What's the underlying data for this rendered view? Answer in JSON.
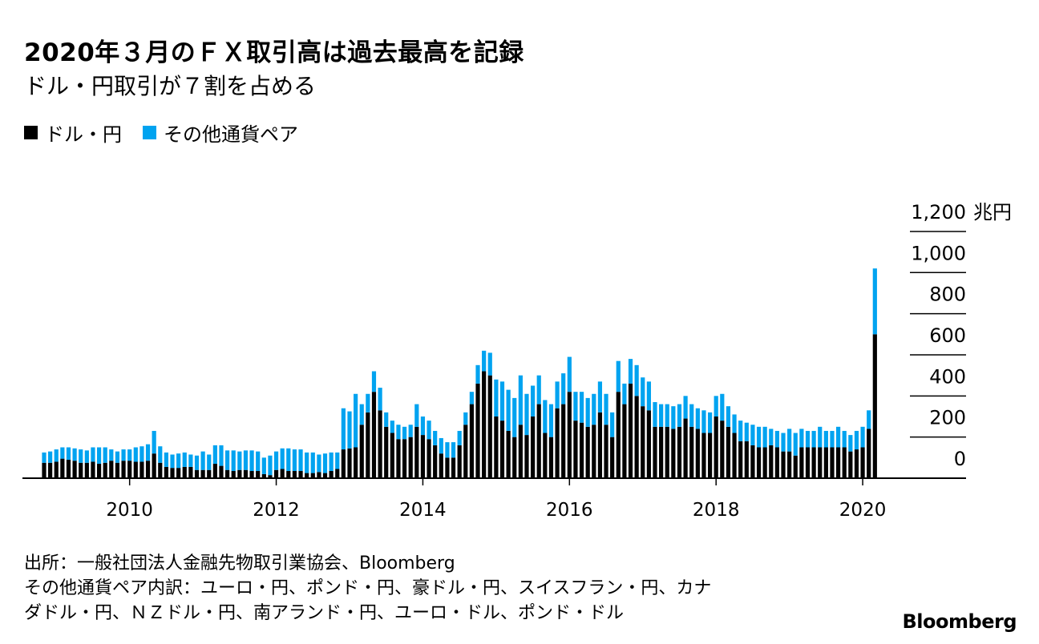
{
  "title": "2020年３月のＦＸ取引高は過去最高を記録",
  "subtitle": "ドル・円取引が７割を占める",
  "legend": [
    {
      "label": "ドル・円",
      "color": "#000000"
    },
    {
      "label": "その他通貨ペア",
      "color": "#00a3f0"
    }
  ],
  "source_lines": [
    "出所：一般社団法人金融先物取引業協会、Bloomberg",
    "その他通貨ペア内訳：ユーロ・円、ポンド・円、豪ドル・円、スイスフラン・円、カナ",
    "ダドル・円、ＮＺドル・円、南アランド・円、ユーロ・ドル、ポンド・ドル"
  ],
  "logo_text": "Bloomberg",
  "chart_data": {
    "type": "bar",
    "stacked": true,
    "unit": "兆円",
    "ylim": [
      0,
      1200
    ],
    "y_ticks": [
      0,
      200,
      400,
      600,
      800,
      1000,
      1200
    ],
    "y_tick_labels": [
      "0",
      "200",
      "400",
      "600",
      "800",
      "1,000",
      "1,200"
    ],
    "y_unit_label": "兆円",
    "x_tick_labels": [
      "2010",
      "2012",
      "2014",
      "2016",
      "2018",
      "2020"
    ],
    "x_tick_values": [
      2010,
      2012,
      2014,
      2016,
      2018,
      2020
    ],
    "x_start": "2008-11",
    "x_end": "2020-03",
    "categories": [
      "2008-11",
      "2008-12",
      "2009-01",
      "2009-02",
      "2009-03",
      "2009-04",
      "2009-05",
      "2009-06",
      "2009-07",
      "2009-08",
      "2009-09",
      "2009-10",
      "2009-11",
      "2009-12",
      "2010-01",
      "2010-02",
      "2010-03",
      "2010-04",
      "2010-05",
      "2010-06",
      "2010-07",
      "2010-08",
      "2010-09",
      "2010-10",
      "2010-11",
      "2010-12",
      "2011-01",
      "2011-02",
      "2011-03",
      "2011-04",
      "2011-05",
      "2011-06",
      "2011-07",
      "2011-08",
      "2011-09",
      "2011-10",
      "2011-11",
      "2011-12",
      "2012-01",
      "2012-02",
      "2012-03",
      "2012-04",
      "2012-05",
      "2012-06",
      "2012-07",
      "2012-08",
      "2012-09",
      "2012-10",
      "2012-11",
      "2012-12",
      "2013-01",
      "2013-02",
      "2013-03",
      "2013-04",
      "2013-05",
      "2013-06",
      "2013-07",
      "2013-08",
      "2013-09",
      "2013-10",
      "2013-11",
      "2013-12",
      "2014-01",
      "2014-02",
      "2014-03",
      "2014-04",
      "2014-05",
      "2014-06",
      "2014-07",
      "2014-08",
      "2014-09",
      "2014-10",
      "2014-11",
      "2014-12",
      "2015-01",
      "2015-02",
      "2015-03",
      "2015-04",
      "2015-05",
      "2015-06",
      "2015-07",
      "2015-08",
      "2015-09",
      "2015-10",
      "2015-11",
      "2015-12",
      "2016-01",
      "2016-02",
      "2016-03",
      "2016-04",
      "2016-05",
      "2016-06",
      "2016-07",
      "2016-08",
      "2016-09",
      "2016-10",
      "2016-11",
      "2016-12",
      "2017-01",
      "2017-02",
      "2017-03",
      "2017-04",
      "2017-05",
      "2017-06",
      "2017-07",
      "2017-08",
      "2017-09",
      "2017-10",
      "2017-11",
      "2017-12",
      "2018-01",
      "2018-02",
      "2018-03",
      "2018-04",
      "2018-05",
      "2018-06",
      "2018-07",
      "2018-08",
      "2018-09",
      "2018-10",
      "2018-11",
      "2018-12",
      "2019-01",
      "2019-02",
      "2019-03",
      "2019-04",
      "2019-05",
      "2019-06",
      "2019-07",
      "2019-08",
      "2019-09",
      "2019-10",
      "2019-11",
      "2019-12",
      "2020-01",
      "2020-02",
      "2020-03"
    ],
    "series": [
      {
        "name": "ドル・円",
        "color": "#000000",
        "values": [
          75,
          75,
          80,
          95,
          90,
          85,
          75,
          75,
          80,
          70,
          75,
          85,
          75,
          85,
          85,
          80,
          80,
          85,
          120,
          75,
          55,
          50,
          50,
          55,
          55,
          40,
          40,
          40,
          70,
          60,
          40,
          35,
          40,
          40,
          35,
          35,
          20,
          15,
          40,
          45,
          35,
          35,
          35,
          25,
          25,
          30,
          25,
          35,
          45,
          140,
          145,
          150,
          260,
          320,
          420,
          330,
          250,
          220,
          190,
          190,
          200,
          250,
          210,
          190,
          160,
          120,
          100,
          100,
          160,
          260,
          360,
          460,
          520,
          500,
          300,
          280,
          230,
          200,
          260,
          210,
          300,
          360,
          220,
          200,
          340,
          360,
          420,
          280,
          270,
          250,
          260,
          320,
          260,
          200,
          420,
          360,
          460,
          400,
          350,
          330,
          250,
          250,
          250,
          240,
          250,
          290,
          250,
          240,
          220,
          220,
          300,
          280,
          250,
          220,
          180,
          180,
          160,
          150,
          150,
          160,
          150,
          130,
          130,
          110,
          150,
          150,
          150,
          150,
          150,
          150,
          150,
          150,
          130,
          140,
          150,
          240,
          700
        ]
      },
      {
        "name": "その他通貨ペア",
        "color": "#00a3f0",
        "values": [
          50,
          55,
          60,
          55,
          60,
          60,
          65,
          60,
          70,
          80,
          75,
          55,
          55,
          55,
          55,
          70,
          75,
          80,
          110,
          80,
          70,
          65,
          70,
          70,
          60,
          70,
          90,
          75,
          90,
          100,
          95,
          100,
          90,
          95,
          100,
          95,
          80,
          95,
          90,
          100,
          110,
          105,
          105,
          100,
          100,
          85,
          95,
          90,
          80,
          200,
          180,
          260,
          100,
          90,
          100,
          110,
          70,
          60,
          70,
          60,
          60,
          110,
          90,
          90,
          70,
          75,
          75,
          75,
          70,
          60,
          60,
          90,
          100,
          110,
          180,
          190,
          200,
          190,
          240,
          200,
          150,
          140,
          160,
          160,
          130,
          150,
          170,
          140,
          150,
          140,
          150,
          150,
          150,
          120,
          150,
          100,
          120,
          150,
          140,
          140,
          120,
          110,
          110,
          110,
          110,
          110,
          110,
          100,
          110,
          100,
          100,
          130,
          100,
          90,
          100,
          90,
          100,
          100,
          100,
          80,
          80,
          90,
          110,
          110,
          90,
          80,
          80,
          100,
          80,
          80,
          100,
          80,
          80,
          90,
          100,
          90,
          320
        ]
      }
    ]
  }
}
